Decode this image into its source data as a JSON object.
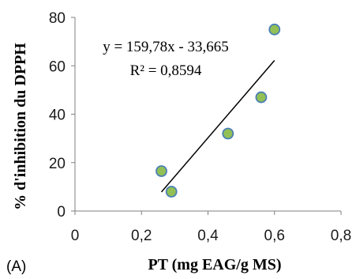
{
  "chart_data": {
    "type": "scatter",
    "panel_label": "(A)",
    "xlabel": "PT (mg EAG/g MS)",
    "ylabel": "% d'inhibition du DPPH",
    "xlim": [
      0,
      0.8
    ],
    "ylim": [
      0,
      80
    ],
    "x_ticks": [
      0,
      0.2,
      0.4,
      0.6,
      0.8
    ],
    "x_tick_labels": [
      "0",
      "0,2",
      "0,4",
      "0,6",
      "0,8"
    ],
    "y_ticks": [
      0,
      20,
      40,
      60,
      80
    ],
    "y_tick_labels": [
      "0",
      "20",
      "40",
      "60",
      "80"
    ],
    "grid": false,
    "legend": "none",
    "points": [
      {
        "x": 0.26,
        "y": 16.5
      },
      {
        "x": 0.29,
        "y": 8
      },
      {
        "x": 0.46,
        "y": 32
      },
      {
        "x": 0.56,
        "y": 47
      },
      {
        "x": 0.6,
        "y": 75
      }
    ],
    "trendline": {
      "slope": 159.78,
      "intercept": -33.665,
      "x_range": [
        0.26,
        0.6
      ],
      "equation": "y = 159,78x - 33,665",
      "r_squared": "R² = 0,8594"
    },
    "colors": {
      "marker_fill": "#92c055",
      "marker_stroke": "#4a7fb5",
      "trendline": "#000000",
      "axis": "#808080"
    }
  }
}
